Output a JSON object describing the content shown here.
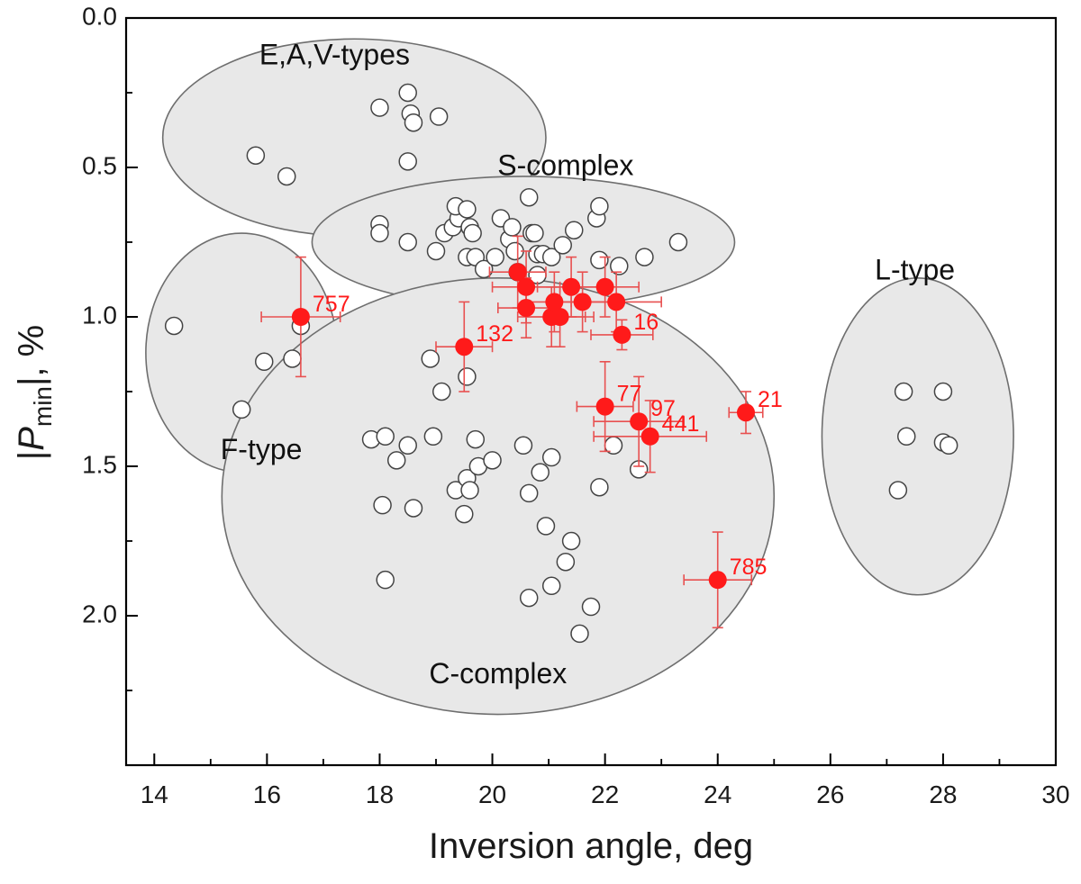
{
  "chart_data": {
    "type": "scatter",
    "xlabel": "Inversion angle, deg",
    "ylabel_prefix": "|",
    "ylabel_italic": "P",
    "ylabel_sub": "min",
    "ylabel_suffix": "|, %",
    "xlim": [
      13.5,
      30
    ],
    "ylim": [
      0,
      2.5
    ],
    "y_inverted": true,
    "x_ticks": [
      14,
      16,
      18,
      20,
      22,
      24,
      26,
      28,
      30
    ],
    "x_minor_ticks": [
      15,
      17,
      19,
      21,
      23,
      25,
      27,
      29
    ],
    "y_ticks": [
      0.0,
      0.5,
      1.0,
      1.5,
      2.0
    ],
    "y_minor_ticks": [
      0.25,
      0.75,
      1.25,
      1.75,
      2.25
    ],
    "tick_decimals": 1,
    "grid": false,
    "colors": {
      "region_fill": "#e8e8e8",
      "region_stroke": "#6e6e6e",
      "open_marker_stroke": "#444444",
      "highlight": "#ff1a1a",
      "error_bar": "#e85050"
    },
    "regions": [
      {
        "label": "E,A,V-types",
        "cx": 17.55,
        "cy": 0.4,
        "rx": 3.4,
        "ry": 0.33,
        "label_x": 17.2,
        "label_y": 0.13
      },
      {
        "label": "S-complex",
        "cx": 20.55,
        "cy": 0.75,
        "rx": 3.75,
        "ry": 0.22,
        "label_x": 21.3,
        "label_y": 0.5
      },
      {
        "label": "F-type",
        "cx": 15.55,
        "cy": 1.12,
        "rx": 1.7,
        "ry": 0.4,
        "label_x": 15.9,
        "label_y": 1.45
      },
      {
        "label": "C-complex",
        "cx": 20.1,
        "cy": 1.6,
        "rx": 4.9,
        "ry": 0.73,
        "label_x": 20.1,
        "label_y": 2.2
      },
      {
        "label": "L-type",
        "cx": 27.55,
        "cy": 1.4,
        "rx": 1.7,
        "ry": 0.53,
        "label_x": 27.5,
        "label_y": 0.85
      }
    ],
    "series": [
      {
        "marker": "open-circle",
        "points": [
          [
            14.35,
            1.03
          ],
          [
            15.8,
            0.46
          ],
          [
            16.35,
            0.53
          ],
          [
            15.55,
            1.31
          ],
          [
            15.95,
            1.15
          ],
          [
            16.45,
            1.14
          ],
          [
            16.6,
            1.03
          ],
          [
            18.0,
            0.3
          ],
          [
            18.5,
            0.25
          ],
          [
            18.55,
            0.32
          ],
          [
            18.6,
            0.35
          ],
          [
            19.05,
            0.33
          ],
          [
            18.5,
            0.48
          ],
          [
            18.0,
            0.69
          ],
          [
            18.0,
            0.72
          ],
          [
            18.5,
            0.75
          ],
          [
            19.0,
            0.78
          ],
          [
            19.15,
            0.72
          ],
          [
            19.3,
            0.7
          ],
          [
            19.4,
            0.67
          ],
          [
            19.35,
            0.63
          ],
          [
            19.55,
            0.64
          ],
          [
            19.6,
            0.7
          ],
          [
            19.65,
            0.72
          ],
          [
            19.55,
            0.8
          ],
          [
            19.7,
            0.8
          ],
          [
            19.85,
            0.84
          ],
          [
            20.05,
            0.8
          ],
          [
            20.15,
            0.67
          ],
          [
            20.3,
            0.74
          ],
          [
            20.35,
            0.7
          ],
          [
            20.4,
            0.78
          ],
          [
            20.45,
            0.85
          ],
          [
            20.65,
            0.6
          ],
          [
            20.7,
            0.72
          ],
          [
            20.8,
            0.79
          ],
          [
            20.8,
            0.86
          ],
          [
            20.9,
            0.79
          ],
          [
            20.75,
            0.72
          ],
          [
            21.05,
            0.8
          ],
          [
            21.25,
            0.76
          ],
          [
            21.45,
            0.71
          ],
          [
            21.85,
            0.67
          ],
          [
            21.9,
            0.63
          ],
          [
            21.9,
            0.81
          ],
          [
            22.25,
            0.83
          ],
          [
            22.7,
            0.8
          ],
          [
            23.3,
            0.75
          ],
          [
            17.85,
            1.41
          ],
          [
            18.1,
            1.4
          ],
          [
            18.3,
            1.48
          ],
          [
            18.5,
            1.43
          ],
          [
            18.05,
            1.63
          ],
          [
            18.6,
            1.64
          ],
          [
            18.9,
            1.14
          ],
          [
            18.95,
            1.4
          ],
          [
            19.1,
            1.25
          ],
          [
            19.35,
            1.58
          ],
          [
            19.55,
            1.54
          ],
          [
            19.55,
            1.2
          ],
          [
            19.6,
            1.58
          ],
          [
            19.5,
            1.66
          ],
          [
            19.7,
            1.41
          ],
          [
            19.75,
            1.5
          ],
          [
            20.0,
            1.48
          ],
          [
            20.55,
            1.43
          ],
          [
            20.65,
            1.59
          ],
          [
            20.85,
            1.52
          ],
          [
            21.05,
            1.47
          ],
          [
            20.95,
            1.7
          ],
          [
            21.4,
            1.75
          ],
          [
            21.3,
            1.82
          ],
          [
            21.05,
            1.9
          ],
          [
            20.65,
            1.94
          ],
          [
            21.75,
            1.97
          ],
          [
            21.55,
            2.06
          ],
          [
            21.9,
            1.57
          ],
          [
            22.15,
            1.43
          ],
          [
            22.6,
            1.51
          ],
          [
            18.1,
            1.88
          ],
          [
            27.2,
            1.58
          ],
          [
            27.3,
            1.25
          ],
          [
            27.35,
            1.4
          ],
          [
            28.0,
            1.25
          ],
          [
            28.0,
            1.42
          ],
          [
            28.1,
            1.43
          ]
        ]
      },
      {
        "marker": "filled-circle",
        "points": [
          {
            "x": 16.6,
            "y": 1.0,
            "xerr": 0.7,
            "yerr": 0.2,
            "label": "757"
          },
          {
            "x": 19.5,
            "y": 1.1,
            "xerr": 0.5,
            "yerr": 0.15,
            "label": "132"
          },
          {
            "x": 20.45,
            "y": 0.85,
            "xerr": 0.5,
            "yerr": 0.12
          },
          {
            "x": 20.6,
            "y": 0.9,
            "xerr": 0.6,
            "yerr": 0.12
          },
          {
            "x": 20.6,
            "y": 0.97,
            "xerr": 0.5,
            "yerr": 0.1
          },
          {
            "x": 21.05,
            "y": 1.0,
            "xerr": 0.6,
            "yerr": 0.1
          },
          {
            "x": 21.1,
            "y": 0.95,
            "xerr": 0.5,
            "yerr": 0.1
          },
          {
            "x": 21.2,
            "y": 1.0,
            "xerr": 0.6,
            "yerr": 0.1
          },
          {
            "x": 21.4,
            "y": 0.9,
            "xerr": 0.6,
            "yerr": 0.1
          },
          {
            "x": 21.6,
            "y": 0.95,
            "xerr": 0.6,
            "yerr": 0.1
          },
          {
            "x": 22.0,
            "y": 0.9,
            "xerr": 0.6,
            "yerr": 0.1
          },
          {
            "x": 22.2,
            "y": 0.95,
            "xerr": 0.8,
            "yerr": 0.1
          },
          {
            "x": 22.3,
            "y": 1.06,
            "xerr": 0.55,
            "yerr": 0.05,
            "label": "16"
          },
          {
            "x": 22.0,
            "y": 1.3,
            "xerr": 0.5,
            "yerr": 0.15,
            "label": "77"
          },
          {
            "x": 22.6,
            "y": 1.35,
            "xerr": 0.8,
            "yerr": 0.15,
            "label": "97"
          },
          {
            "x": 22.8,
            "y": 1.4,
            "xerr": 1.0,
            "yerr": 0.12,
            "label": "441"
          },
          {
            "x": 24.5,
            "y": 1.32,
            "xerr": 0.3,
            "yerr": 0.07,
            "label": "21"
          },
          {
            "x": 24.0,
            "y": 1.88,
            "xerr": 0.6,
            "yerr": 0.16,
            "label": "785"
          }
        ]
      }
    ]
  }
}
